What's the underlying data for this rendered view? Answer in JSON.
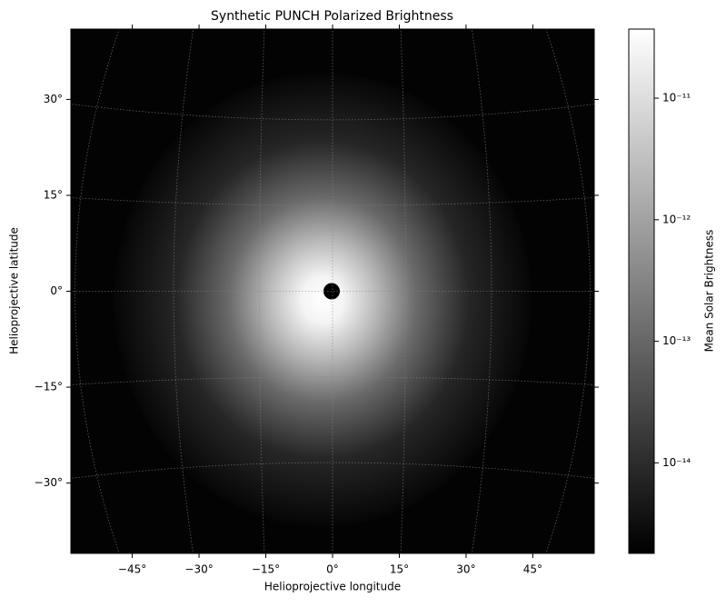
{
  "chart_data": {
    "type": "image",
    "title": "Synthetic PUNCH Polarized Brightness",
    "xlabel": "Helioprojective longitude",
    "ylabel": "Helioprojective latitude",
    "xlim": [
      -58.8,
      58.8
    ],
    "ylim": [
      -41,
      41
    ],
    "xticks": [
      {
        "value": -45,
        "label": "−45°"
      },
      {
        "value": -30,
        "label": "−30°"
      },
      {
        "value": -15,
        "label": "−15°"
      },
      {
        "value": 0,
        "label": "0°"
      },
      {
        "value": 15,
        "label": "15°"
      },
      {
        "value": 30,
        "label": "30°"
      },
      {
        "value": 45,
        "label": "45°"
      }
    ],
    "yticks": [
      {
        "value": -30,
        "label": "−30°"
      },
      {
        "value": -15,
        "label": "−15°"
      },
      {
        "value": 0,
        "label": "0°"
      },
      {
        "value": 15,
        "label": "15°"
      },
      {
        "value": 30,
        "label": "30°"
      }
    ],
    "grid": true,
    "colormap": [
      "#000000",
      "#ffffff"
    ],
    "colorbar": {
      "label": "Mean Solar Brightness",
      "log_scale": true,
      "lim": [
        1.8e-15,
        3.7e-11
      ],
      "ticks": [
        {
          "value": 1e-14,
          "label": "10⁻¹⁴"
        },
        {
          "value": 1e-13,
          "label": "10⁻¹³"
        },
        {
          "value": 1e-12,
          "label": "10⁻¹²"
        },
        {
          "value": 1e-11,
          "label": "10⁻¹¹"
        }
      ]
    }
  }
}
